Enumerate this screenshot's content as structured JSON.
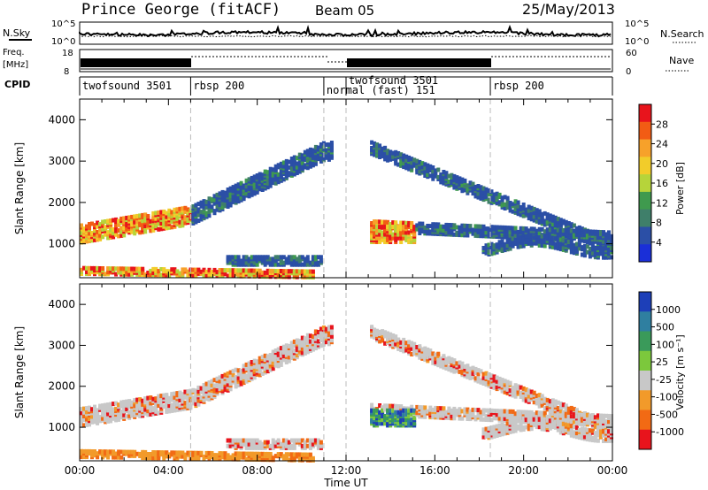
{
  "header": {
    "station": "Prince George (fitACF)",
    "beam": "Beam 05",
    "date": "25/May/2013"
  },
  "strips": {
    "nsky_label": "N.Sky",
    "nsearch_label": "N.Search",
    "freq_label_1": "Freq.",
    "freq_label_2": "[MHz]",
    "nave_label": "Nave",
    "cpid_label": "CPID",
    "nsky_ticks": [
      "10^5",
      "10^0"
    ],
    "nsearch_ticks": [
      "10^5",
      "10^0"
    ],
    "freq_ticks": [
      "18",
      "8"
    ],
    "nave_ticks": [
      "60",
      "0"
    ]
  },
  "cpid_segments": [
    {
      "label": "twofsound 3501",
      "start_hour": 0.0
    },
    {
      "label": "rbsp 200",
      "start_hour": 5.0
    },
    {
      "label": "normal (fast) 151",
      "start_hour": 11.0
    },
    {
      "label": "twofsound 3501",
      "start_hour": 12.0
    },
    {
      "label": "rbsp 200",
      "start_hour": 18.5
    }
  ],
  "colorbars": {
    "power": {
      "label": "Power [dB]",
      "ticks": [
        "28",
        "24",
        "20",
        "16",
        "12",
        "8",
        "4"
      ],
      "colors": [
        "#e8141c",
        "#f25c14",
        "#f7a12a",
        "#f2cc2a",
        "#b6d43a",
        "#3f9a4e",
        "#3f7f6a",
        "#2b4fa6",
        "#1a2fd8"
      ]
    },
    "velocity": {
      "label": "Velocity [m s⁻¹]",
      "ticks": [
        "1000",
        "500",
        "100",
        "25",
        "-25",
        "-100",
        "-500",
        "-1000"
      ],
      "colors": [
        "#1d3fb8",
        "#2f7fa0",
        "#3a9a5a",
        "#7cc83c",
        "#c8c8c8",
        "#f29a2a",
        "#f26a14",
        "#e8141c"
      ]
    }
  },
  "chart_data": [
    {
      "type": "heatmap",
      "title": "",
      "parameter": "Power",
      "xlabel": "",
      "ylabel": "Slant Range [km]",
      "xlim_hours": [
        0,
        24
      ],
      "ylim_km": [
        180,
        4500
      ],
      "y_ticks": [
        "1000",
        "2000",
        "3000",
        "4000"
      ],
      "z_range_db": [
        0,
        30
      ],
      "echo_bands": [
        {
          "name": "evening near-range band",
          "t_start": 0.0,
          "t_end": 10.5,
          "range_start_km": 300,
          "range_end_km": 600
        },
        {
          "name": "rising F-region band",
          "t_start": 0.0,
          "t_end": 11.5,
          "range_start_km": 1000,
          "range_end_km": 3400
        },
        {
          "name": "morning band",
          "t_start": 13.0,
          "t_end": 24.0,
          "range_start_km": 900,
          "range_end_km": 3500
        }
      ]
    },
    {
      "type": "heatmap",
      "title": "",
      "parameter": "Velocity",
      "xlabel": "Time UT",
      "ylabel": "Slant Range [km]",
      "xlim_hours": [
        0,
        24
      ],
      "ylim_km": [
        180,
        4500
      ],
      "x_ticks": [
        "00:00",
        "04:00",
        "08:00",
        "12:00",
        "16:00",
        "20:00",
        "00:00"
      ],
      "y_ticks": [
        "1000",
        "2000",
        "3000",
        "4000"
      ],
      "z_range_ms": [
        -1000,
        1000
      ]
    }
  ]
}
